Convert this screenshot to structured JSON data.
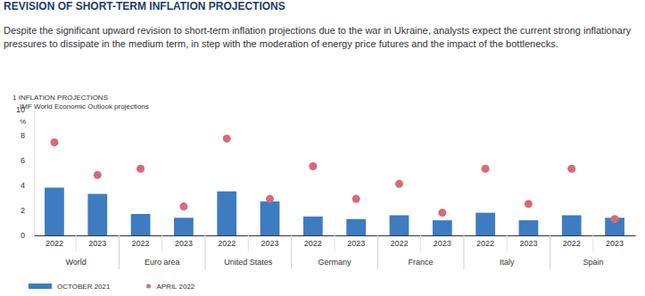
{
  "header": {
    "title": "REVISION OF SHORT-TERM INFLATION PROJECTIONS",
    "text": "Despite the significant upward revision to short-term inflation projections due to the war in Ukraine, analysts expect the current strong inflationary pressures to dissipate in the medium term, in step with the moderation of energy price futures and the impact of the bottlenecks."
  },
  "chart_data": {
    "type": "bar",
    "title": "1 INFLATION PROJECTIONS",
    "subtitle": "IMF World Economic Outlook projections",
    "y_label": "%",
    "categories": [
      "2022",
      "2023",
      "2022",
      "2023",
      "2022",
      "2023",
      "2022",
      "2023",
      "2022",
      "2023",
      "2022",
      "2023",
      "2022",
      "2023"
    ],
    "groups": [
      "World",
      "Euro area",
      "United States",
      "Germany",
      "France",
      "Italy",
      "Spain"
    ],
    "series": [
      {
        "name": "OCTOBER 2021",
        "type": "bar",
        "color": "#3d7cc0",
        "values": [
          3.8,
          3.3,
          1.7,
          1.4,
          3.5,
          2.7,
          1.5,
          1.3,
          1.6,
          1.2,
          1.8,
          1.2,
          1.6,
          1.4
        ]
      },
      {
        "name": "APRIL 2022",
        "type": "scatter",
        "marker": "circle",
        "color": "#d8697a",
        "values": [
          7.4,
          4.8,
          5.3,
          2.3,
          7.7,
          2.9,
          5.5,
          2.9,
          4.1,
          1.8,
          5.3,
          2.5,
          5.3,
          1.3
        ]
      }
    ],
    "ylim": [
      0,
      10
    ],
    "yticks": [
      0,
      2,
      4,
      6,
      8,
      10
    ],
    "grid": false,
    "legend": "bottom-left"
  }
}
